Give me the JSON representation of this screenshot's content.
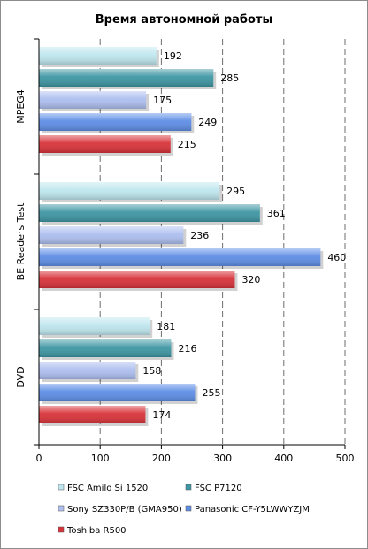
{
  "chart_data": {
    "type": "bar",
    "orientation": "horizontal",
    "title": "Время автономной работы",
    "categories": [
      "MPEG4",
      "BE Readers Test",
      "DVD"
    ],
    "series": [
      {
        "name": "FSC Amilo Si 1520",
        "color": "#bfe6ee",
        "values": [
          192,
          295,
          181
        ]
      },
      {
        "name": "FSC P7120",
        "color": "#3e97a4",
        "values": [
          285,
          361,
          216
        ]
      },
      {
        "name": "Sony SZ330P/B (GMA950)",
        "color": "#aebff0",
        "values": [
          175,
          236,
          158
        ]
      },
      {
        "name": "Panasonic CF-Y5LWWYZJM",
        "color": "#5f8ee6",
        "values": [
          249,
          460,
          255
        ]
      },
      {
        "name": "Toshiba R500",
        "color": "#d8333a",
        "values": [
          215,
          320,
          174
        ]
      }
    ],
    "xlim": [
      0,
      500
    ],
    "xticks": [
      "0",
      "100",
      "200",
      "300",
      "400",
      "500"
    ],
    "grid": "vertical dashed",
    "legend_position": "bottom"
  }
}
